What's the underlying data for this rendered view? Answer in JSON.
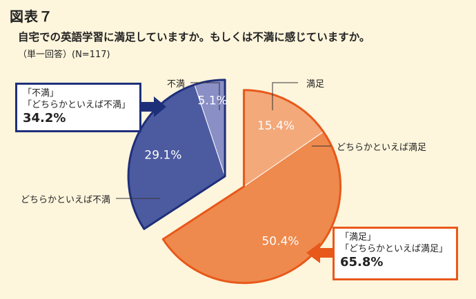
{
  "figure_label": "図表７",
  "title": "自宅での英語学習に満足していますか。もしくは不満に感じていますか。",
  "subtitle": "（単一回答）(N=117)",
  "chart_data": {
    "type": "pie",
    "title": "自宅での英語学習に満足していますか。もしくは不満に感じていますか。",
    "subtitle": "（単一回答）(N=117)",
    "categories": [
      "満足",
      "どちらかといえば満足",
      "どちらかといえば不満",
      "不満"
    ],
    "values": [
      15.4,
      50.4,
      29.1,
      5.1
    ],
    "value_labels": [
      "15.4%",
      "50.4%",
      "29.1%",
      "5.1%"
    ],
    "colors": [
      "#f3a97a",
      "#ee8a4e",
      "#4c5ba0",
      "#8a8fc6"
    ],
    "exploded_groups": [
      {
        "members": [
          "満足",
          "どちらかといえば満足"
        ],
        "outline": "#e8581a"
      },
      {
        "members": [
          "どちらかといえば不満",
          "不満"
        ],
        "outline": "#1e2f7a"
      }
    ]
  },
  "callouts": {
    "left": {
      "line1": "「不満」",
      "line2": "「どちらかといえば不満」",
      "value": "34.2%",
      "color": "#1e2f7a"
    },
    "right": {
      "line1": "「満足」",
      "line2": "「どちらかといえば満足」",
      "value": "65.8%",
      "color": "#e8581a"
    }
  }
}
